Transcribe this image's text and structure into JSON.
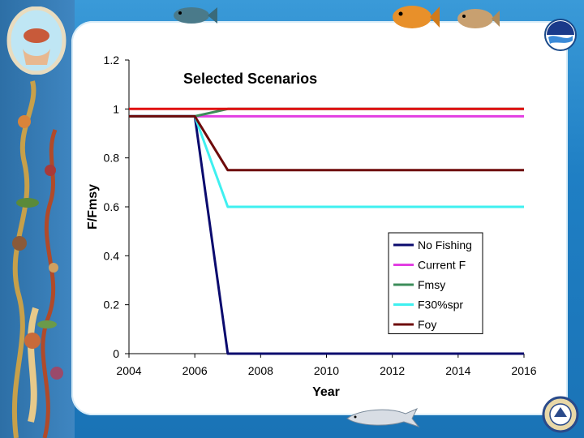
{
  "slide": {
    "colors": {
      "frame": "#1f7fc4",
      "panel": "#ffffff"
    },
    "icons": [
      "hands-holding-fish-logo-icon",
      "noaa-logo-icon",
      "commerce-seal-icon",
      "fish-icon",
      "dolphin-icon",
      "seaweed-border-icon"
    ]
  },
  "chart_data": {
    "type": "line",
    "title": "Selected Scenarios",
    "xlabel": "Year",
    "ylabel": "F/Fmsy",
    "xlim": [
      2004,
      2016
    ],
    "ylim": [
      0,
      1.2
    ],
    "xticks": [
      2004,
      2006,
      2008,
      2010,
      2012,
      2014,
      2016
    ],
    "yticks": [
      0,
      0.2,
      0.4,
      0.6,
      0.8,
      1,
      1.2
    ],
    "ytick_labels": [
      "0",
      "0.2",
      "0.4",
      "0.6",
      "0.8",
      "1",
      "1.2"
    ],
    "grid": false,
    "legend_position": "bottom-right",
    "series": [
      {
        "name": "No Fishing",
        "color": "#0a0a6e",
        "x": [
          2004,
          2006,
          2007,
          2016
        ],
        "y": [
          0.97,
          0.97,
          0,
          0
        ]
      },
      {
        "name": "Current F",
        "color": "#e23ee2",
        "x": [
          2004,
          2016
        ],
        "y": [
          0.97,
          0.97
        ]
      },
      {
        "name": "Fmsy",
        "color": "#3c8c5a",
        "x": [
          2004,
          2006,
          2007,
          2016
        ],
        "y": [
          0.97,
          0.97,
          1,
          1
        ]
      },
      {
        "name": "F30%spr",
        "color": "#3ff0f0",
        "x": [
          2004,
          2006,
          2007,
          2016
        ],
        "y": [
          0.97,
          0.97,
          0.6,
          0.6
        ]
      },
      {
        "name": "Foy",
        "color": "#6e0a0a",
        "x": [
          2004,
          2006,
          2007,
          2016
        ],
        "y": [
          0.97,
          0.97,
          0.75,
          0.75
        ]
      },
      {
        "name": "",
        "color": "#e01010",
        "x": [
          2004,
          2016
        ],
        "y": [
          1,
          1
        ]
      }
    ]
  }
}
